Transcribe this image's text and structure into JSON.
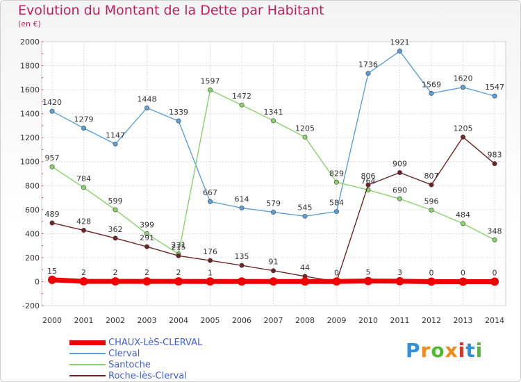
{
  "header": {
    "title": "Evolution du Montant de la Dette par Habitant",
    "subtitle": "(en €)"
  },
  "logo": {
    "text": "Proxiti",
    "colors": [
      "#2f8fd8",
      "#f08a1a",
      "#53b833",
      "#f08a1a",
      "#d8342a",
      "#2f8fd8",
      "#53b833"
    ]
  },
  "chart_data": {
    "type": "line",
    "title": "Evolution du Montant de la Dette par Habitant",
    "ylabel": "(en €)",
    "xlabel": "",
    "x": [
      "2000",
      "2001",
      "2002",
      "2003",
      "2004",
      "2005",
      "2006",
      "2007",
      "2008",
      "2009",
      "2010",
      "2011",
      "2012",
      "2013",
      "2014"
    ],
    "yticks": [
      "-200",
      "0",
      "200",
      "400",
      "600",
      "800",
      "1000",
      "1200",
      "1400",
      "1600",
      "1800",
      "2000"
    ],
    "ylim": [
      -200,
      2000
    ],
    "grid": true,
    "legend": "bottom-left",
    "series": [
      {
        "name": "CHAUX-LèS-CLERVAL",
        "color": "#ee0000",
        "values": [
          15,
          2,
          2,
          2,
          2,
          1,
          1,
          1,
          1,
          1,
          5,
          3,
          0,
          0,
          0
        ],
        "labels": [
          "15",
          "2",
          "2",
          "2",
          "2",
          "1",
          "",
          "",
          "",
          "",
          "5",
          "3",
          "0",
          "0",
          "0"
        ]
      },
      {
        "name": "Clerval",
        "color": "#5aa0d8",
        "values": [
          1420,
          1279,
          1147,
          1448,
          1339,
          667,
          614,
          579,
          545,
          584,
          1736,
          1921,
          1569,
          1620,
          1547
        ],
        "labels": [
          "1420",
          "1279",
          "1147",
          "1448",
          "1339",
          "667",
          "614",
          "579",
          "545",
          "584",
          "1736",
          "1921",
          "1569",
          "1620",
          "1547"
        ]
      },
      {
        "name": "Santoche",
        "color": "#88d26a",
        "values": [
          957,
          784,
          599,
          399,
          231,
          1597,
          1472,
          1341,
          1205,
          829,
          764,
          690,
          596,
          484,
          348
        ],
        "labels": [
          "957",
          "784",
          "599",
          "399",
          "231",
          "1597",
          "1472",
          "1341",
          "1205",
          "829",
          "764",
          "690",
          "596",
          "484",
          "348"
        ]
      },
      {
        "name": "Roche-lès-Clerval",
        "color": "#6e2424",
        "values": [
          489,
          428,
          362,
          291,
          215,
          176,
          135,
          91,
          44,
          0,
          806,
          909,
          807,
          1205,
          983
        ],
        "labels": [
          "489",
          "428",
          "362",
          "291",
          "215",
          "176",
          "135",
          "91",
          "44",
          "0",
          "806",
          "909",
          "807",
          "1205",
          "983"
        ]
      }
    ]
  }
}
